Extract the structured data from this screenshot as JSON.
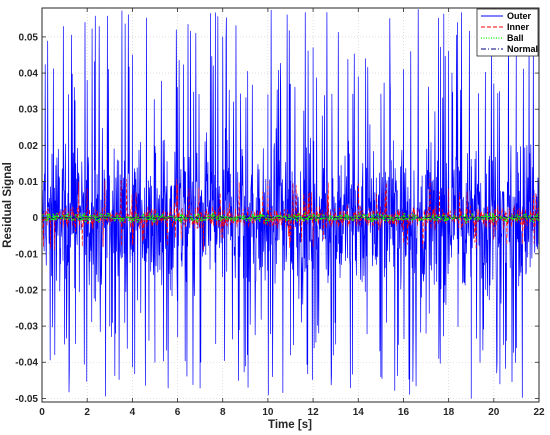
{
  "chart_data": {
    "type": "line",
    "title": "",
    "xlabel": "Time [s]",
    "ylabel": "Residual Signal",
    "xlim": [
      0,
      22
    ],
    "ylim": [
      -0.051,
      0.058
    ],
    "x_ticks": [
      0,
      2,
      4,
      6,
      8,
      10,
      12,
      14,
      16,
      18,
      20,
      22
    ],
    "x_tick_labels": [
      "0",
      "2",
      "4",
      "6",
      "8",
      "10",
      "12",
      "14",
      "16",
      "18",
      "20",
      "22"
    ],
    "y_ticks": [
      -0.05,
      -0.04,
      -0.03,
      -0.02,
      -0.01,
      0,
      0.01,
      0.02,
      0.03,
      0.04,
      0.05
    ],
    "y_tick_labels": [
      "-0.05",
      "-0.04",
      "-0.03",
      "-0.02",
      "-0.01",
      "0",
      "0.01",
      "0.02",
      "0.03",
      "0.04",
      "0.05"
    ],
    "grid": true,
    "legend_position": "top-right",
    "series": [
      {
        "name": "Outer",
        "color": "#0000ff",
        "line_style": "solid",
        "x_range": [
          0,
          22
        ],
        "typical_band": [
          -0.02,
          0.02
        ],
        "peak_range": [
          -0.05,
          0.058
        ],
        "representative_points": [
          [
            0.0,
            0.004
          ],
          [
            1.0,
            -0.035
          ],
          [
            2.0,
            0.038
          ],
          [
            3.0,
            -0.03
          ],
          [
            4.0,
            0.045
          ],
          [
            5.0,
            -0.04
          ],
          [
            6.0,
            0.036
          ],
          [
            7.0,
            -0.033
          ],
          [
            8.0,
            0.05
          ],
          [
            9.0,
            -0.041
          ],
          [
            10.0,
            0.034
          ],
          [
            11.0,
            -0.038
          ],
          [
            12.0,
            0.047
          ],
          [
            13.0,
            -0.035
          ],
          [
            14.0,
            0.039
          ],
          [
            15.0,
            -0.044
          ],
          [
            16.0,
            0.041
          ],
          [
            17.0,
            -0.032
          ],
          [
            18.0,
            0.046
          ],
          [
            19.0,
            -0.05
          ],
          [
            20.0,
            0.037
          ],
          [
            21.0,
            -0.036
          ],
          [
            22.0,
            0.002
          ]
        ]
      },
      {
        "name": "Inner",
        "color": "#ff0000",
        "line_style": "dashed",
        "x_range": [
          0,
          22
        ],
        "typical_band": [
          -0.003,
          0.003
        ],
        "peak_range": [
          -0.009,
          0.011
        ],
        "representative_points": [
          [
            0.0,
            0.001
          ],
          [
            2.0,
            0.008
          ],
          [
            4.0,
            -0.007
          ],
          [
            6.0,
            0.009
          ],
          [
            8.0,
            -0.006
          ],
          [
            10.0,
            0.01
          ],
          [
            12.0,
            -0.008
          ],
          [
            14.0,
            0.009
          ],
          [
            16.0,
            -0.007
          ],
          [
            18.0,
            0.008
          ],
          [
            20.0,
            -0.006
          ],
          [
            22.0,
            0.0
          ]
        ]
      },
      {
        "name": "Ball",
        "color": "#00ff00",
        "line_style": "dotted",
        "x_range": [
          0,
          22
        ],
        "typical_band": [
          -0.001,
          0.001
        ],
        "peak_range": [
          -0.0015,
          0.0015
        ]
      },
      {
        "name": "Normal",
        "color": "#000080",
        "line_style": "dash-dot",
        "x_range": [
          0,
          22
        ],
        "typical_band": [
          -0.0003,
          0.0003
        ],
        "peak_range": [
          -0.0005,
          0.0005
        ]
      }
    ]
  }
}
